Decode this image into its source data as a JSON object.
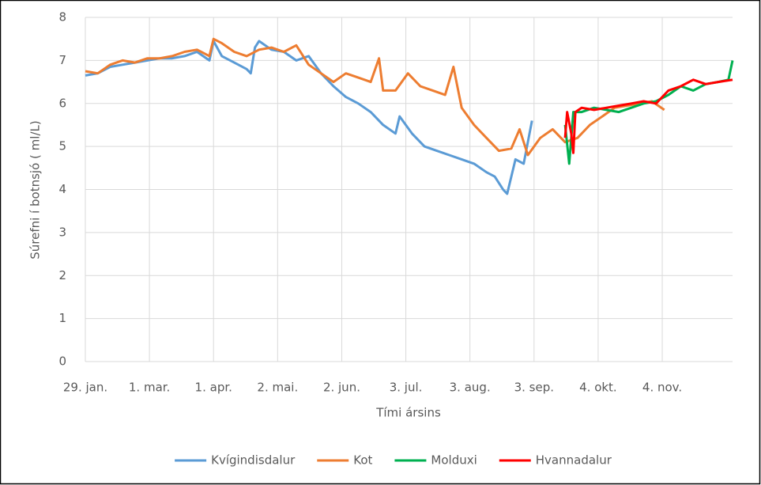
{
  "chart_data": {
    "type": "line",
    "ylabel": "Súrefni í botnsjó ( ml/L)",
    "xlabel": "Tími ársins",
    "xlim": [
      0,
      313
    ],
    "xticks": [
      {
        "value": 0,
        "label": "29. jan."
      },
      {
        "value": 31,
        "label": "1. mar."
      },
      {
        "value": 62,
        "label": "1. apr."
      },
      {
        "value": 93,
        "label": "2. mai."
      },
      {
        "value": 124,
        "label": "2. jun."
      },
      {
        "value": 155,
        "label": "3. jul."
      },
      {
        "value": 186,
        "label": "3. aug."
      },
      {
        "value": 217,
        "label": "3. sep."
      },
      {
        "value": 248,
        "label": "4. okt."
      },
      {
        "value": 279,
        "label": "4. nov."
      }
    ],
    "ylim": [
      0,
      8
    ],
    "yticks": [
      0,
      1,
      2,
      3,
      4,
      5,
      6,
      7,
      8
    ],
    "grid": true,
    "legend": "bottom",
    "series": [
      {
        "name": "Kvígindisdalur",
        "color": "#5b9bd5",
        "x": [
          0,
          6,
          12,
          18,
          24,
          30,
          36,
          42,
          48,
          54,
          60,
          62,
          66,
          72,
          78,
          80,
          82,
          84,
          90,
          96,
          102,
          108,
          114,
          120,
          126,
          132,
          138,
          144,
          150,
          152,
          158,
          164,
          170,
          176,
          182,
          188,
          194,
          198,
          202,
          204,
          208,
          212,
          216
        ],
        "values": [
          6.65,
          6.7,
          6.85,
          6.9,
          6.95,
          7.0,
          7.05,
          7.05,
          7.1,
          7.2,
          7.0,
          7.45,
          7.1,
          6.95,
          6.8,
          6.7,
          7.3,
          7.45,
          7.25,
          7.2,
          7.0,
          7.1,
          6.7,
          6.4,
          6.15,
          6.0,
          5.8,
          5.5,
          5.3,
          5.7,
          5.3,
          5.0,
          4.9,
          4.8,
          4.7,
          4.6,
          4.4,
          4.3,
          4.0,
          3.9,
          4.7,
          4.6,
          5.6
        ]
      },
      {
        "name": "Kot",
        "color": "#ed7d31",
        "x": [
          0,
          6,
          12,
          18,
          24,
          30,
          36,
          42,
          48,
          54,
          60,
          62,
          66,
          72,
          78,
          84,
          90,
          96,
          102,
          108,
          114,
          120,
          126,
          132,
          138,
          142,
          144,
          150,
          156,
          162,
          168,
          174,
          178,
          182,
          188,
          194,
          200,
          206,
          210,
          214,
          220,
          226,
          232,
          238,
          244,
          250,
          256,
          262,
          268,
          274,
          280
        ],
        "values": [
          6.75,
          6.7,
          6.9,
          7.0,
          6.95,
          7.05,
          7.05,
          7.1,
          7.2,
          7.25,
          7.1,
          7.5,
          7.4,
          7.2,
          7.1,
          7.25,
          7.3,
          7.2,
          7.35,
          6.9,
          6.7,
          6.5,
          6.7,
          6.6,
          6.5,
          7.05,
          6.3,
          6.3,
          6.7,
          6.4,
          6.3,
          6.2,
          6.85,
          5.9,
          5.5,
          5.2,
          4.9,
          4.95,
          5.4,
          4.8,
          5.2,
          5.4,
          5.1,
          5.2,
          5.5,
          5.7,
          5.9,
          5.95,
          6.0,
          6.05,
          5.85
        ]
      },
      {
        "name": "Molduxi",
        "color": "#00b050",
        "x": [
          232,
          234,
          236,
          240,
          246,
          252,
          258,
          264,
          270,
          276,
          282,
          288,
          294,
          300,
          306,
          311,
          313
        ],
        "values": [
          5.5,
          4.6,
          5.8,
          5.8,
          5.9,
          5.85,
          5.8,
          5.9,
          6.0,
          6.05,
          6.2,
          6.4,
          6.3,
          6.45,
          6.5,
          6.55,
          7.0
        ]
      },
      {
        "name": "Hvannadalur",
        "color": "#ff0000",
        "x": [
          232,
          233,
          235,
          236,
          237,
          240,
          246,
          252,
          258,
          264,
          270,
          276,
          282,
          288,
          294,
          300,
          306,
          313
        ],
        "values": [
          5.2,
          5.8,
          5.3,
          4.85,
          5.8,
          5.9,
          5.85,
          5.9,
          5.95,
          6.0,
          6.05,
          6.0,
          6.3,
          6.4,
          6.55,
          6.45,
          6.5,
          6.55
        ]
      }
    ]
  }
}
